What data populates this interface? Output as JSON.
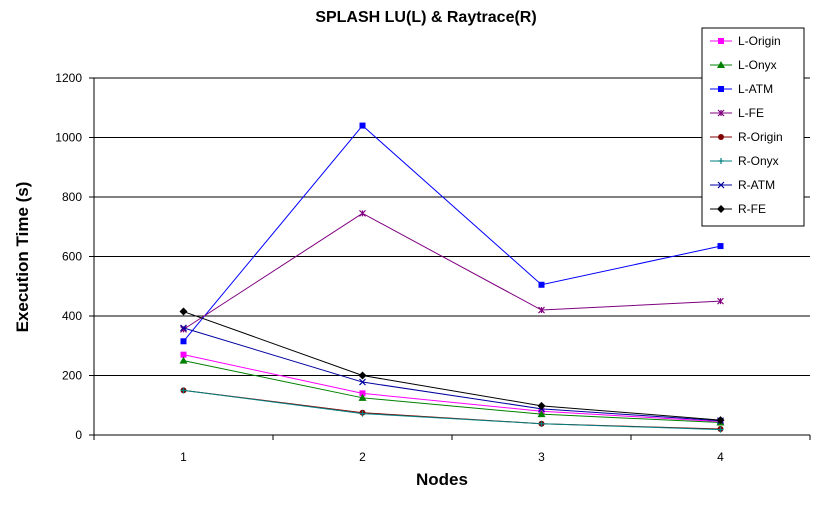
{
  "chart_data": {
    "type": "line",
    "title": "SPLASH LU(L) & Raytrace(R)",
    "xlabel": "Nodes",
    "ylabel": "Execution Time (s)",
    "categories": [
      "1",
      "2",
      "3",
      "4"
    ],
    "ylim": [
      0,
      1200
    ],
    "yticks": [
      "0",
      "200",
      "400",
      "600",
      "800",
      "1000",
      "1200"
    ],
    "grid": true,
    "legend_position": "top-right",
    "series": [
      {
        "name": "L-Origin",
        "values": [
          270,
          140,
          80,
          45
        ],
        "color": "#ff00ff",
        "marker": "square"
      },
      {
        "name": "L-Onyx",
        "values": [
          250,
          125,
          70,
          42
        ],
        "color": "#008000",
        "marker": "triangle"
      },
      {
        "name": "L-ATM",
        "values": [
          315,
          1040,
          505,
          635
        ],
        "color": "#0000ff",
        "marker": "square"
      },
      {
        "name": "L-FE",
        "values": [
          355,
          745,
          420,
          450
        ],
        "color": "#800080",
        "marker": "star"
      },
      {
        "name": "R-Origin",
        "values": [
          150,
          75,
          38,
          20
        ],
        "color": "#800000",
        "marker": "circle"
      },
      {
        "name": "R-Onyx",
        "values": [
          150,
          72,
          38,
          18
        ],
        "color": "#008080",
        "marker": "plus"
      },
      {
        "name": "R-ATM",
        "values": [
          360,
          178,
          88,
          48
        ],
        "color": "#0000a0",
        "marker": "x"
      },
      {
        "name": "R-FE",
        "values": [
          415,
          200,
          98,
          50
        ],
        "color": "#000000",
        "marker": "diamond"
      }
    ]
  }
}
